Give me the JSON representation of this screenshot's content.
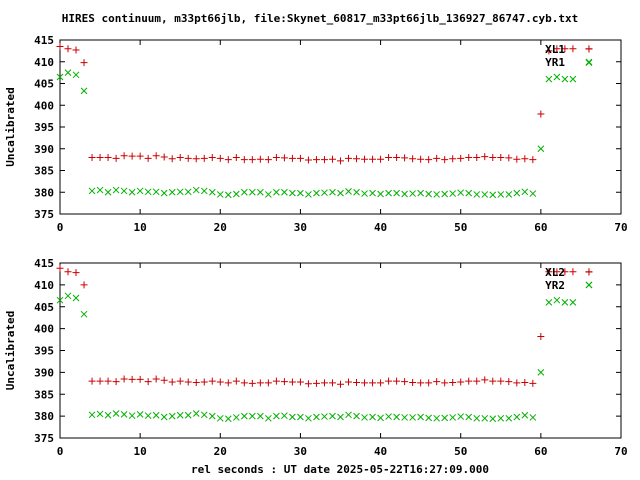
{
  "figure": {
    "title": "HIRES continuum, m33pt66jlb, file:Skynet_60817_m33pt66jlb_136927_86747.cyb.txt",
    "xlabel": "rel seconds : UT date 2025-05-22T16:27:09.000"
  },
  "colors": {
    "red_series": "#cc0000",
    "green_series": "#00b000",
    "axis": "#000000"
  },
  "chart_data": [
    {
      "type": "scatter",
      "ylabel": "Uncalibrated",
      "xlim": [
        0,
        70
      ],
      "ylim": [
        375,
        415
      ],
      "xticks": [
        0,
        10,
        20,
        30,
        40,
        50,
        60,
        70
      ],
      "yticks": [
        375,
        380,
        385,
        390,
        395,
        400,
        405,
        410,
        415
      ],
      "grid": false,
      "legend": "top-right",
      "series": [
        {
          "name": "XL1",
          "marker": "plus",
          "x": [
            0,
            1,
            2,
            3,
            4,
            5,
            6,
            7,
            8,
            9,
            10,
            11,
            12,
            13,
            14,
            15,
            16,
            17,
            18,
            19,
            20,
            21,
            22,
            23,
            24,
            25,
            26,
            27,
            28,
            29,
            30,
            31,
            32,
            33,
            34,
            35,
            36,
            37,
            38,
            39,
            40,
            41,
            42,
            43,
            44,
            45,
            46,
            47,
            48,
            49,
            50,
            51,
            52,
            53,
            54,
            55,
            56,
            57,
            58,
            59,
            60,
            61,
            62,
            63,
            64,
            66
          ],
          "y": [
            413.5,
            413,
            412.7,
            409.8,
            388,
            388,
            388,
            387.8,
            388.4,
            388.3,
            388.3,
            387.8,
            388.4,
            388.1,
            387.7,
            388,
            387.8,
            387.7,
            387.8,
            388,
            387.8,
            387.5,
            388,
            387.5,
            387.5,
            387.6,
            387.5,
            388,
            387.9,
            387.8,
            387.8,
            387.4,
            387.5,
            387.5,
            387.6,
            387.2,
            387.8,
            387.7,
            387.6,
            387.6,
            387.6,
            388,
            388,
            387.9,
            387.7,
            387.6,
            387.5,
            387.8,
            387.5,
            387.7,
            387.8,
            388,
            388,
            388.2,
            388,
            388,
            387.9,
            387.6,
            387.7,
            387.5,
            398,
            412.5,
            413,
            413,
            413,
            413
          ]
        },
        {
          "name": "YR1",
          "marker": "cross",
          "x": [
            0,
            1,
            2,
            3,
            4,
            5,
            6,
            7,
            8,
            9,
            10,
            11,
            12,
            13,
            14,
            15,
            16,
            17,
            18,
            19,
            20,
            21,
            22,
            23,
            24,
            25,
            26,
            27,
            28,
            29,
            30,
            31,
            32,
            33,
            34,
            35,
            36,
            37,
            38,
            39,
            40,
            41,
            42,
            43,
            44,
            45,
            46,
            47,
            48,
            49,
            50,
            51,
            52,
            53,
            54,
            55,
            56,
            57,
            58,
            59,
            60,
            61,
            62,
            63,
            64,
            66
          ],
          "y": [
            406.5,
            407.5,
            407,
            403.3,
            380.3,
            380.5,
            380,
            380.5,
            380.3,
            380,
            380.3,
            380.1,
            380.1,
            379.8,
            380,
            380.1,
            380.1,
            380.5,
            380.3,
            380,
            379.5,
            379.4,
            379.6,
            380,
            380,
            380,
            379.5,
            380,
            380,
            379.8,
            379.8,
            379.5,
            379.8,
            379.9,
            380,
            379.8,
            380.2,
            380,
            379.7,
            379.8,
            379.6,
            379.8,
            379.8,
            379.6,
            379.7,
            379.8,
            379.6,
            379.5,
            379.6,
            379.7,
            379.9,
            379.8,
            379.5,
            379.5,
            379.4,
            379.5,
            379.5,
            379.8,
            380.1,
            379.7,
            390,
            406,
            406.5,
            406,
            406,
            409.8
          ]
        }
      ]
    },
    {
      "type": "scatter",
      "ylabel": "Uncalibrated",
      "xlim": [
        0,
        70
      ],
      "ylim": [
        375,
        415
      ],
      "xticks": [
        0,
        10,
        20,
        30,
        40,
        50,
        60,
        70
      ],
      "yticks": [
        375,
        380,
        385,
        390,
        395,
        400,
        405,
        410,
        415
      ],
      "grid": false,
      "legend": "top-right",
      "series": [
        {
          "name": "XL2",
          "marker": "plus",
          "x": [
            0,
            1,
            2,
            3,
            4,
            5,
            6,
            7,
            8,
            9,
            10,
            11,
            12,
            13,
            14,
            15,
            16,
            17,
            18,
            19,
            20,
            21,
            22,
            23,
            24,
            25,
            26,
            27,
            28,
            29,
            30,
            31,
            32,
            33,
            34,
            35,
            36,
            37,
            38,
            39,
            40,
            41,
            42,
            43,
            44,
            45,
            46,
            47,
            48,
            49,
            50,
            51,
            52,
            53,
            54,
            55,
            56,
            57,
            58,
            59,
            60,
            61,
            62,
            63,
            64,
            66
          ],
          "y": [
            413.8,
            413,
            412.8,
            410,
            388,
            388,
            388,
            387.9,
            388.5,
            388.4,
            388.4,
            387.9,
            388.5,
            388.2,
            387.8,
            388,
            387.8,
            387.7,
            387.8,
            388,
            387.8,
            387.6,
            388,
            387.6,
            387.5,
            387.6,
            387.6,
            388,
            387.9,
            387.8,
            387.8,
            387.4,
            387.5,
            387.6,
            387.6,
            387.3,
            387.8,
            387.7,
            387.6,
            387.6,
            387.6,
            388,
            388,
            387.9,
            387.7,
            387.6,
            387.6,
            387.9,
            387.6,
            387.7,
            387.8,
            388,
            388,
            388.3,
            388,
            388,
            387.9,
            387.6,
            387.7,
            387.5,
            398.2,
            413,
            413,
            413,
            413,
            413
          ]
        },
        {
          "name": "YR2",
          "marker": "cross",
          "x": [
            0,
            1,
            2,
            3,
            4,
            5,
            6,
            7,
            8,
            9,
            10,
            11,
            12,
            13,
            14,
            15,
            16,
            17,
            18,
            19,
            20,
            21,
            22,
            23,
            24,
            25,
            26,
            27,
            28,
            29,
            30,
            31,
            32,
            33,
            34,
            35,
            36,
            37,
            38,
            39,
            40,
            41,
            42,
            43,
            44,
            45,
            46,
            47,
            48,
            49,
            50,
            51,
            52,
            53,
            54,
            55,
            56,
            57,
            58,
            59,
            60,
            61,
            62,
            63,
            64,
            66
          ],
          "y": [
            406.5,
            407.5,
            407,
            403.3,
            380.3,
            380.5,
            380.2,
            380.6,
            380.4,
            380.1,
            380.4,
            380.1,
            380.2,
            379.8,
            380,
            380.2,
            380.2,
            380.6,
            380.3,
            380,
            379.5,
            379.4,
            379.7,
            380,
            380,
            380,
            379.5,
            380,
            380.1,
            379.8,
            379.8,
            379.5,
            379.8,
            379.9,
            380,
            379.8,
            380.3,
            380,
            379.7,
            379.8,
            379.6,
            379.9,
            379.8,
            379.7,
            379.7,
            379.8,
            379.6,
            379.5,
            379.6,
            379.7,
            379.9,
            379.8,
            379.5,
            379.5,
            379.4,
            379.5,
            379.5,
            379.8,
            380.2,
            379.7,
            390,
            406,
            406.5,
            406,
            406,
            410
          ]
        }
      ]
    }
  ]
}
